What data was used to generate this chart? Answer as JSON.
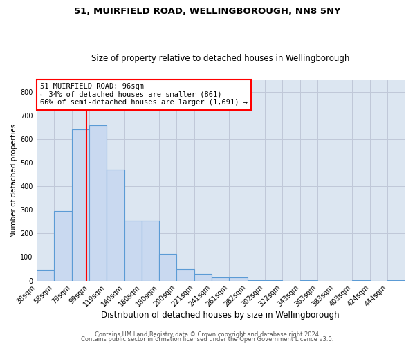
{
  "title1": "51, MUIRFIELD ROAD, WELLINGBOROUGH, NN8 5NY",
  "title2": "Size of property relative to detached houses in Wellingborough",
  "xlabel": "Distribution of detached houses by size in Wellingborough",
  "ylabel": "Number of detached properties",
  "bins": [
    38,
    58,
    79,
    99,
    119,
    140,
    160,
    180,
    200,
    221,
    241,
    261,
    282,
    302,
    322,
    343,
    363,
    383,
    403,
    424,
    444
  ],
  "counts": [
    47,
    295,
    640,
    660,
    470,
    253,
    253,
    113,
    48,
    28,
    14,
    13,
    1,
    1,
    0,
    1,
    0,
    0,
    1,
    0,
    1
  ],
  "bar_facecolor": "#c9d9f0",
  "bar_edgecolor": "#5b9bd5",
  "bar_linewidth": 0.8,
  "vline_x": 96,
  "vline_color": "red",
  "vline_linewidth": 1.5,
  "annotation_line1": "51 MUIRFIELD ROAD: 96sqm",
  "annotation_line2": "← 34% of detached houses are smaller (861)",
  "annotation_line3": "66% of semi-detached houses are larger (1,691) →",
  "annotation_box_color": "red",
  "annotation_box_facecolor": "white",
  "annotation_fontsize": 7.5,
  "ylim": [
    0,
    850
  ],
  "yticks": [
    0,
    100,
    200,
    300,
    400,
    500,
    600,
    700,
    800
  ],
  "grid_color": "#c0c8d8",
  "plot_bg_color": "#dce6f1",
  "footer1": "Contains HM Land Registry data © Crown copyright and database right 2024.",
  "footer2": "Contains public sector information licensed under the Open Government Licence v3.0.",
  "title1_fontsize": 9.5,
  "title2_fontsize": 8.5,
  "xlabel_fontsize": 8.5,
  "ylabel_fontsize": 7.5,
  "tick_fontsize": 7,
  "footer_fontsize": 6
}
